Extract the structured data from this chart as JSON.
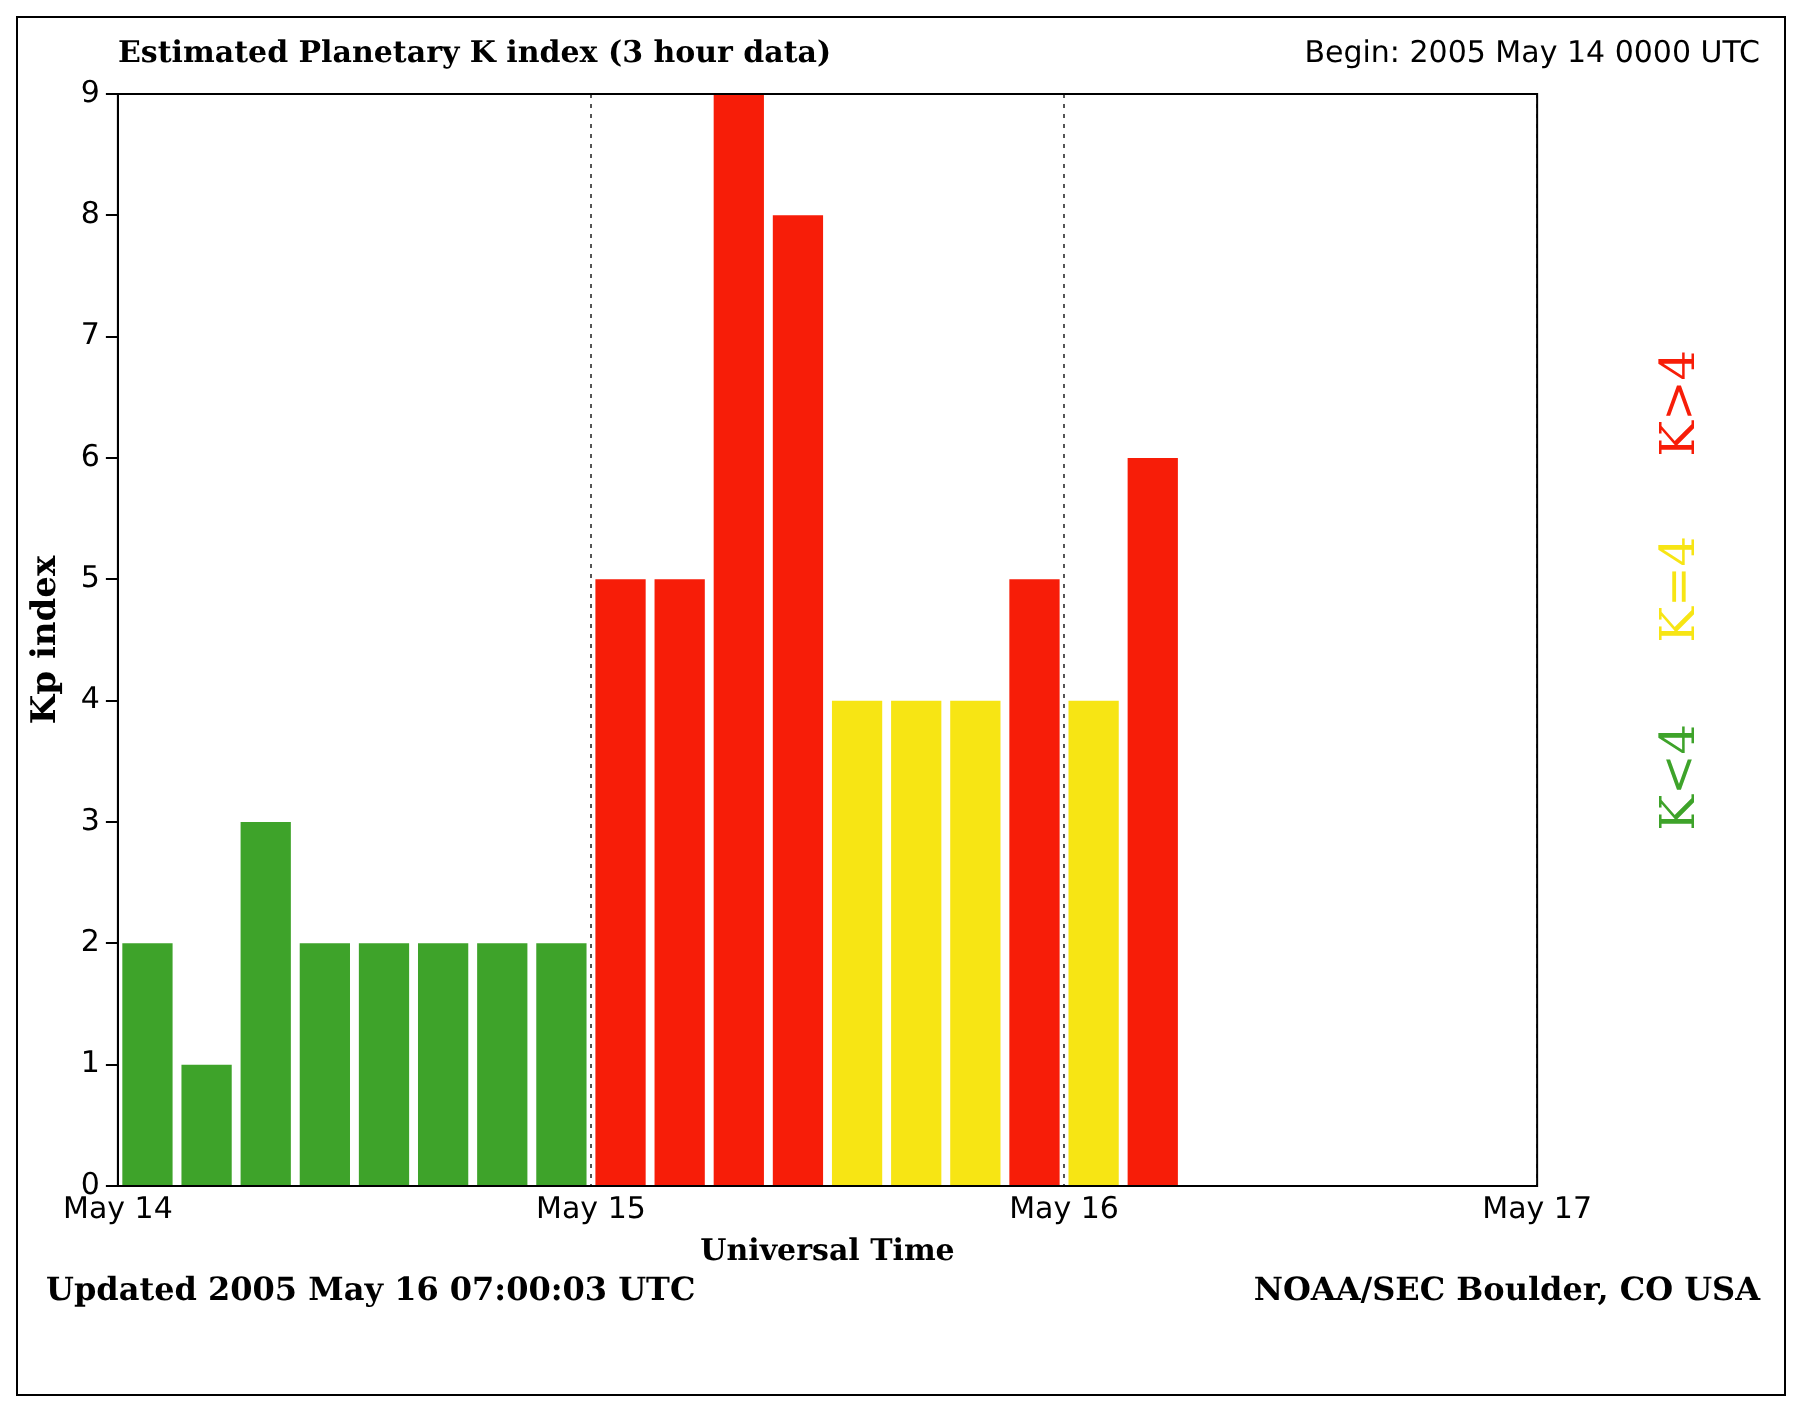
{
  "chart_data": {
    "type": "bar",
    "title": "Estimated Planetary K index (3 hour data)",
    "subtitle": "Begin:  2005 May 14 0000 UTC",
    "xlabel": "Universal Time",
    "ylabel": "Kp index",
    "x": [
      "2005-05-14T01:30",
      "2005-05-14T04:30",
      "2005-05-14T07:30",
      "2005-05-14T10:30",
      "2005-05-14T13:30",
      "2005-05-14T16:30",
      "2005-05-14T19:30",
      "2005-05-14T22:30",
      "2005-05-15T01:30",
      "2005-05-15T04:30",
      "2005-05-15T07:30",
      "2005-05-15T10:30",
      "2005-05-15T13:30",
      "2005-05-15T16:30",
      "2005-05-15T19:30",
      "2005-05-15T22:30",
      "2005-05-16T01:30",
      "2005-05-16T04:30"
    ],
    "series": [
      {
        "name": "K<4",
        "color": "#3ea32a",
        "values": [
          2,
          1,
          3,
          2,
          2,
          2,
          2,
          2,
          null,
          null,
          null,
          null,
          null,
          null,
          null,
          null,
          null,
          null
        ]
      },
      {
        "name": "K=4",
        "color": "#f7e514",
        "values": [
          null,
          null,
          null,
          null,
          null,
          null,
          null,
          null,
          null,
          null,
          null,
          null,
          4,
          4,
          4,
          null,
          4,
          null
        ]
      },
      {
        "name": "K>4",
        "color": "#f71d08",
        "values": [
          null,
          null,
          null,
          null,
          null,
          null,
          null,
          null,
          5,
          5,
          9,
          8,
          null,
          null,
          null,
          5,
          null,
          6
        ]
      }
    ],
    "xlim": [
      "2005-05-14",
      "2005-05-17"
    ],
    "xticks": [
      {
        "value": "2005-05-14",
        "label": "May 14"
      },
      {
        "value": "2005-05-15",
        "label": "May 15"
      },
      {
        "value": "2005-05-16",
        "label": "May 16"
      },
      {
        "value": "2005-05-17",
        "label": "May 17"
      }
    ],
    "ylim": [
      0,
      9
    ],
    "yticks": [
      0,
      1,
      2,
      3,
      4,
      5,
      6,
      7,
      8,
      9
    ],
    "grid": "x",
    "legend": "right",
    "annotations": [
      "Updated 2005 May 16 07:00:03 UTC",
      "NOAA/SEC Boulder, CO USA"
    ]
  }
}
